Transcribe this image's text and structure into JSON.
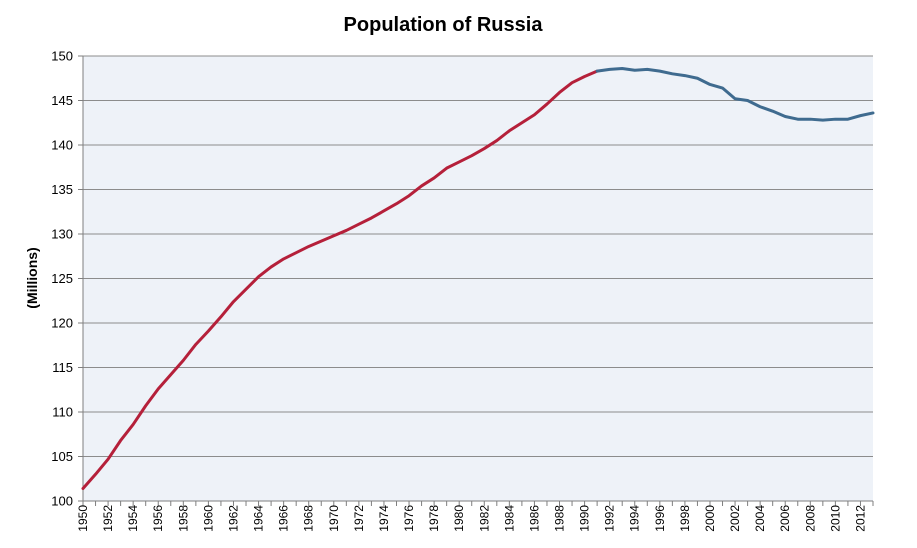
{
  "chart_data": {
    "type": "line",
    "title": "Population of Russia",
    "xlabel": "",
    "ylabel": "(Millions)",
    "xlim": [
      1950,
      2013
    ],
    "ylim": [
      100,
      150
    ],
    "yticks": [
      "100",
      "105",
      "110",
      "115",
      "120",
      "125",
      "130",
      "135",
      "140",
      "145",
      "150"
    ],
    "xticks": [
      "1950",
      "1952",
      "1954",
      "1956",
      "1958",
      "1960",
      "1962",
      "1964",
      "1966",
      "1968",
      "1970",
      "1972",
      "1974",
      "1976",
      "1978",
      "1980",
      "1982",
      "1984",
      "1986",
      "1988",
      "1990",
      "1992",
      "1994",
      "1996",
      "1998",
      "2000",
      "2002",
      "2004",
      "2006",
      "2008",
      "2010",
      "2012"
    ],
    "grid": true,
    "legend": "none",
    "colors": {
      "plot_background": "#eef2f8",
      "gridline": "#8c8c8c",
      "axis": "#7f7f7f"
    },
    "series": [
      {
        "color": "#b5203a",
        "x": [
          1950,
          1951,
          1952,
          1953,
          1954,
          1955,
          1956,
          1957,
          1958,
          1959,
          1960,
          1961,
          1962,
          1963,
          1964,
          1965,
          1966,
          1967,
          1968,
          1969,
          1970,
          1971,
          1972,
          1973,
          1974,
          1975,
          1976,
          1977,
          1978,
          1979,
          1980,
          1981,
          1982,
          1983,
          1984,
          1985,
          1986,
          1987,
          1988,
          1989,
          1990,
          1991
        ],
        "values": [
          101.4,
          103.0,
          104.7,
          106.8,
          108.6,
          110.7,
          112.6,
          114.2,
          115.8,
          117.6,
          119.1,
          120.7,
          122.4,
          123.8,
          125.2,
          126.3,
          127.2,
          127.9,
          128.6,
          129.2,
          129.8,
          130.4,
          131.1,
          131.8,
          132.6,
          133.4,
          134.3,
          135.4,
          136.3,
          137.4,
          138.1,
          138.8,
          139.6,
          140.5,
          141.6,
          142.5,
          143.4,
          144.6,
          145.9,
          147.0,
          147.7,
          148.3
        ]
      },
      {
        "color": "#3f6b8f",
        "x": [
          1991,
          1992,
          1993,
          1994,
          1995,
          1996,
          1997,
          1998,
          1999,
          2000,
          2001,
          2002,
          2003,
          2004,
          2005,
          2006,
          2007,
          2008,
          2009,
          2010,
          2011,
          2012,
          2013
        ],
        "values": [
          148.3,
          148.5,
          148.6,
          148.4,
          148.5,
          148.3,
          148.0,
          147.8,
          147.5,
          146.8,
          146.4,
          145.2,
          145.0,
          144.3,
          143.8,
          143.2,
          142.9,
          142.9,
          142.8,
          142.9,
          142.9,
          143.3,
          143.6
        ]
      }
    ]
  }
}
